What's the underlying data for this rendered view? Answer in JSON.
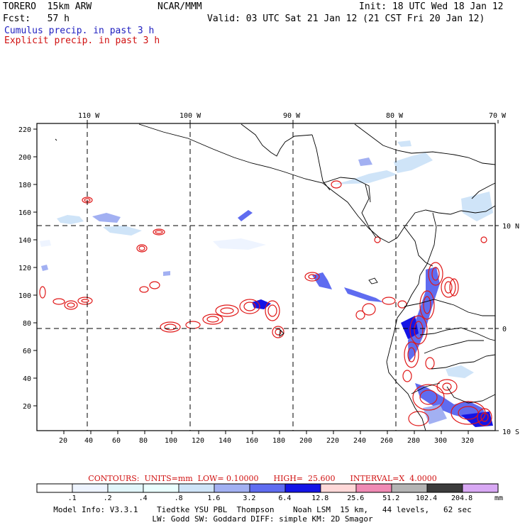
{
  "header": {
    "model": "TORERO  15km ARW",
    "org": "NCAR/MMM",
    "init": "Init: 18 UTC Wed 18 Jan 12",
    "fcst": "Fcst:   57 h",
    "valid": "Valid: 03 UTC Sat 21 Jan 12 (21 CST Fri 20 Jan 12)",
    "legend_cumulus": "Cumulus precip. in past 3 h",
    "legend_explicit": "Explicit precip. in past 3 h"
  },
  "axes": {
    "top_ticks": [
      "110 W",
      "100 W",
      "90 W",
      "80 W",
      "70 W"
    ],
    "right_ticks": [
      "10 N",
      "0",
      "10 S"
    ],
    "left_ticks": [
      "220",
      "200",
      "180",
      "160",
      "140",
      "120",
      "100",
      "80",
      "60",
      "40",
      "20"
    ],
    "bottom_ticks": [
      "20",
      "40",
      "60",
      "80",
      "100",
      "120",
      "140",
      "160",
      "180",
      "200",
      "220",
      "240",
      "260",
      "280",
      "300",
      "320"
    ]
  },
  "contours_line": "CONTOURS:  UNITS=mm  LOW= 0.10000      HIGH=  25.600      INTERVAL=X  4.0000",
  "colorbar": {
    "labels": [
      ".1",
      ".2",
      ".4",
      ".8",
      "1.6",
      "3.2",
      "6.4",
      "12.8",
      "25.6",
      "51.2",
      "102.4",
      "204.8"
    ],
    "unit": "mm",
    "colors": [
      "#ffffff",
      "#eef4ff",
      "#e2f6fa",
      "#eaffff",
      "#cfe4f8",
      "#a2b0f2",
      "#5f6cf0",
      "#1414e6",
      "#ffd8d8",
      "#f08ab4",
      "#b4b4b4",
      "#3c3c3c",
      "#d8a8f4"
    ]
  },
  "footer": {
    "line1": "Model Info: V3.3.1    Tiedtke YSU PBL  Thompson    Noah LSM  15 km,   44 levels,   62 sec",
    "line2": "LW: Godd SW: Goddard DIFF: simple KM: 2D Smagor"
  }
}
